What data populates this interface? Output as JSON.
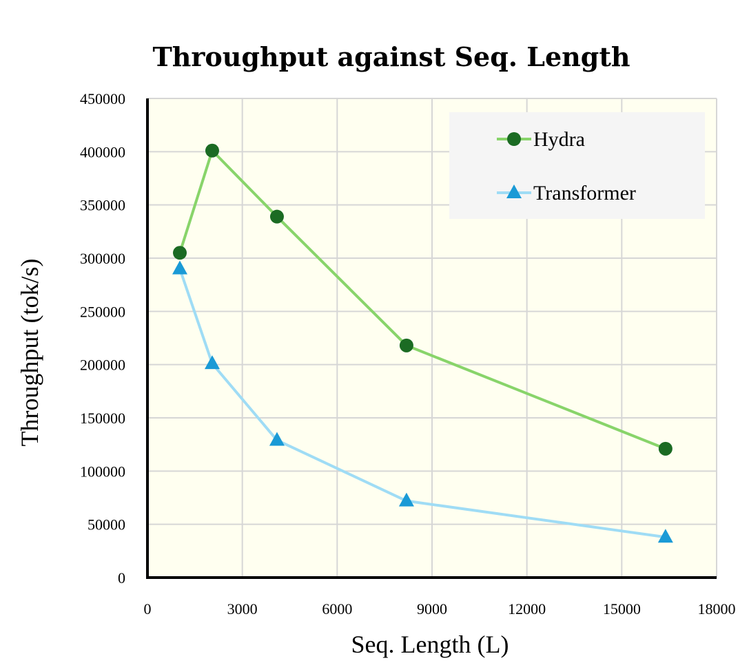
{
  "chart_data": {
    "type": "line",
    "title": "Throughput against Seq. Length",
    "xlabel": "Seq. Length (L)",
    "ylabel": "Throughput (tok/s)",
    "xlim": [
      0,
      18000
    ],
    "ylim": [
      0,
      450000
    ],
    "xticks": [
      0,
      3000,
      6000,
      9000,
      12000,
      15000,
      18000
    ],
    "yticks": [
      0,
      50000,
      100000,
      150000,
      200000,
      250000,
      300000,
      350000,
      400000,
      450000
    ],
    "xtick_labels": [
      "0",
      "3000",
      "6000",
      "9000",
      "12000",
      "15000",
      "18000"
    ],
    "ytick_labels": [
      "0",
      "50000",
      "100000",
      "150000",
      "200000",
      "250000",
      "300000",
      "350000",
      "400000",
      "450000"
    ],
    "grid": true,
    "legend_position": "top-right",
    "plot_background": "#fffff0",
    "legend_background": "#f5f5f5",
    "series": [
      {
        "name": "Hydra",
        "marker": "circle",
        "line_color": "#88d46a",
        "marker_color": "#1b6b23",
        "x": [
          1024,
          2048,
          4096,
          8192,
          16384
        ],
        "y": [
          305000,
          401000,
          339000,
          218000,
          121000
        ]
      },
      {
        "name": "Transformer",
        "marker": "triangle",
        "line_color": "#9fdcf5",
        "marker_color": "#1a9ad6",
        "x": [
          1024,
          2048,
          4096,
          8192,
          16384
        ],
        "y": [
          290000,
          201000,
          129000,
          72000,
          38000
        ]
      }
    ]
  }
}
